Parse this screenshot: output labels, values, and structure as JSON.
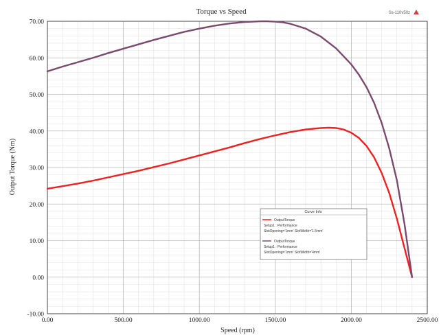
{
  "chart_data": {
    "type": "line",
    "title": "Torque vs Speed",
    "corner_label": "Ss-110v50z",
    "xlabel": "Speed (rpm)",
    "ylabel": "Output Torque (Nm)",
    "xlim": [
      0,
      2500
    ],
    "ylim": [
      -10,
      70
    ],
    "x_ticks": [
      "0.00",
      "500.00",
      "1000.00",
      "1500.00",
      "2000.00",
      "2500.00"
    ],
    "y_ticks": [
      "-10.00",
      "0.00",
      "10.00",
      "20.00",
      "30.00",
      "40.00",
      "50.00",
      "60.00",
      "70.00"
    ],
    "grid": true,
    "legend": {
      "position": "lower-right",
      "title": "Curve Info",
      "entries": [
        {
          "label": "OutputTorque",
          "line2": "Setup1 : Performance",
          "line3": "SlotOpening='1mm' SlotWidth='1.5mm'",
          "color": "#ee2020"
        },
        {
          "label": "OutputTorque",
          "line2": "Setup1 : Performance",
          "line3": "SlotOpening='1mm' SlotWidth='4mm'",
          "color": "#7a4a6e"
        }
      ]
    },
    "series": [
      {
        "color": "#ee2020",
        "x": [
          0,
          100,
          200,
          300,
          400,
          500,
          600,
          700,
          800,
          900,
          1000,
          1100,
          1200,
          1300,
          1400,
          1500,
          1600,
          1700,
          1800,
          1850,
          1900,
          1950,
          2000,
          2050,
          2100,
          2150,
          2200,
          2250,
          2300,
          2350,
          2400
        ],
        "y": [
          24.2,
          24.9,
          25.6,
          26.4,
          27.3,
          28.2,
          29.1,
          30.1,
          31.1,
          32.2,
          33.3,
          34.4,
          35.5,
          36.7,
          37.8,
          38.8,
          39.7,
          40.4,
          40.8,
          40.9,
          40.8,
          40.4,
          39.5,
          38.1,
          35.9,
          32.8,
          28.5,
          23.0,
          16.0,
          8.0,
          0.0
        ]
      },
      {
        "color": "#7a4a6e",
        "x": [
          0,
          100,
          200,
          300,
          400,
          500,
          600,
          700,
          800,
          900,
          1000,
          1100,
          1200,
          1300,
          1400,
          1450,
          1500,
          1550,
          1600,
          1700,
          1800,
          1900,
          2000,
          2050,
          2100,
          2150,
          2200,
          2250,
          2300,
          2350,
          2400
        ],
        "y": [
          56.3,
          57.6,
          58.8,
          60.0,
          61.3,
          62.5,
          63.7,
          64.9,
          66.0,
          67.1,
          68.0,
          68.8,
          69.4,
          69.8,
          70.0,
          70.0,
          69.9,
          69.7,
          69.3,
          68.0,
          65.8,
          62.6,
          58.2,
          55.4,
          52.0,
          47.7,
          42.2,
          35.2,
          26.5,
          14.6,
          0.0
        ]
      }
    ]
  }
}
